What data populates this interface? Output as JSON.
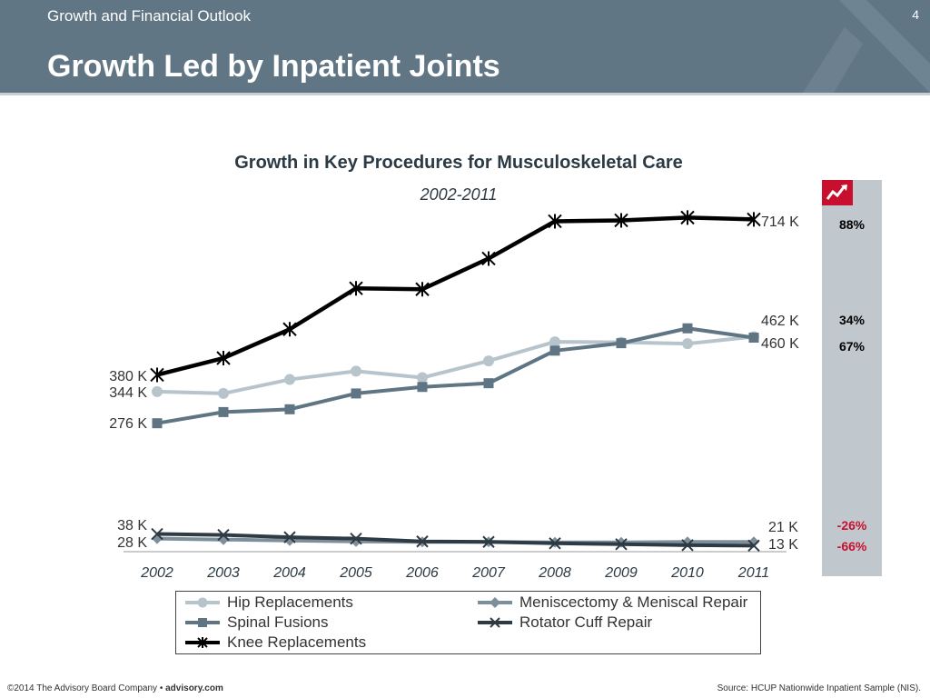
{
  "header": {
    "section": "Growth and Financial Outlook",
    "page_number": "4",
    "title": "Growth Led by Inpatient Joints",
    "logo_icon": "advisory-board-chevron-logo"
  },
  "colors": {
    "header_bg": "#617685",
    "hip": "#b8c4cb",
    "spinal": "#607584",
    "knee": "#000000",
    "meniscus": "#7e8f9c",
    "rotator": "#2f3b44",
    "growth_positive": "#333333",
    "growth_negative": "#c8102e",
    "badge": "#c8102e"
  },
  "growth_panel": {
    "badge_icon": "trend-arrow-icon",
    "values": [
      "88%",
      "34%",
      "67%",
      "-26%",
      "-66%"
    ]
  },
  "endpoint_labels": {
    "left": [
      "380 K",
      "344 K",
      "276 K",
      "38 K",
      "28 K"
    ],
    "right": [
      "714 K",
      "462 K",
      "460 K",
      "21 K",
      "13 K"
    ]
  },
  "chart_data": {
    "type": "line",
    "title": "Growth in Key Procedures for Musculoskeletal Care",
    "subtitle": "2002-2011",
    "categories": [
      "2002",
      "2003",
      "2004",
      "2005",
      "2006",
      "2007",
      "2008",
      "2009",
      "2010",
      "2011"
    ],
    "ylim": [
      0,
      800
    ],
    "grid": false,
    "legend_position": "bottom",
    "series": [
      {
        "name": "Hip Replacements",
        "marker": "circle",
        "values": [
          344,
          340,
          370,
          388,
          374,
          410,
          451,
          450,
          447,
          462
        ]
      },
      {
        "name": "Spinal Fusions",
        "marker": "square",
        "values": [
          276,
          300,
          306,
          340,
          354,
          362,
          432,
          448,
          480,
          460
        ]
      },
      {
        "name": "Knee Replacements",
        "marker": "star",
        "values": [
          380,
          416,
          478,
          566,
          564,
          630,
          710,
          712,
          718,
          714
        ]
      },
      {
        "name": "Meniscectomy & Meniscal Repair",
        "marker": "diamond",
        "values": [
          28,
          26,
          24,
          22,
          21,
          21,
          20,
          20,
          21,
          21
        ]
      },
      {
        "name": "Rotator Cuff Repair",
        "marker": "x",
        "values": [
          38,
          36,
          31,
          28,
          22,
          21,
          18,
          16,
          14,
          13
        ]
      }
    ]
  },
  "legend": {
    "items": [
      "Hip Replacements",
      "Meniscectomy & Meniscal Repair",
      "Spinal Fusions",
      "Rotator Cuff Repair",
      "Knee Replacements"
    ]
  },
  "footer": {
    "copyright": "©2014 The Advisory Board Company • ",
    "site": "advisory.com",
    "source": "Source: HCUP Nationwide Inpatient Sample (NIS)."
  }
}
